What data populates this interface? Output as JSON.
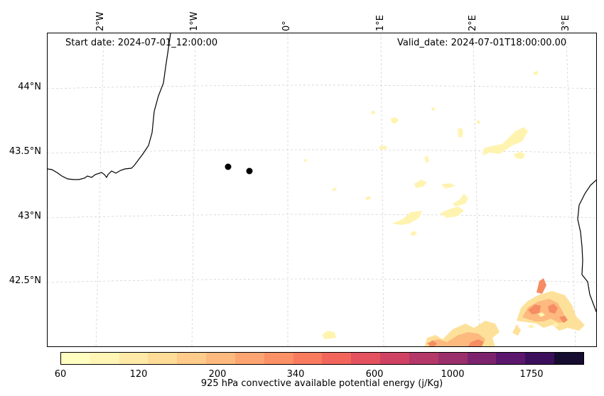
{
  "map": {
    "start_date": "Start date: 2024-07-01_12:00:00",
    "valid_date": "Valid_date: 2024-07-01T18:00:00.00",
    "lon_ticks": [
      "2°W",
      "1°W",
      "0°",
      "1°E",
      "2°E",
      "3°E"
    ],
    "lat_ticks": [
      "44°N",
      "43.5°N",
      "43°N",
      "42.5°N"
    ],
    "points": [
      {
        "lon": -0.64,
        "lat": 43.39
      },
      {
        "lon": -0.42,
        "lat": 43.36
      }
    ],
    "grid": true,
    "coastline_color": "#000000"
  },
  "colorbar": {
    "label": "925 hPa convective available potential energy (j/Kg)",
    "tick_labels": [
      "60",
      "120",
      "200",
      "340",
      "600",
      "1000",
      "1750"
    ],
    "colors": [
      "#fffdc0",
      "#fff5b5",
      "#fee9a6",
      "#fedc98",
      "#fecb8a",
      "#fdb97e",
      "#fda572",
      "#fc9066",
      "#f97b5e",
      "#f2655b",
      "#e4515f",
      "#d04263",
      "#b43868",
      "#9a2f6c",
      "#7c236e",
      "#5b176d",
      "#3b0f5b",
      "#150c30"
    ]
  }
}
